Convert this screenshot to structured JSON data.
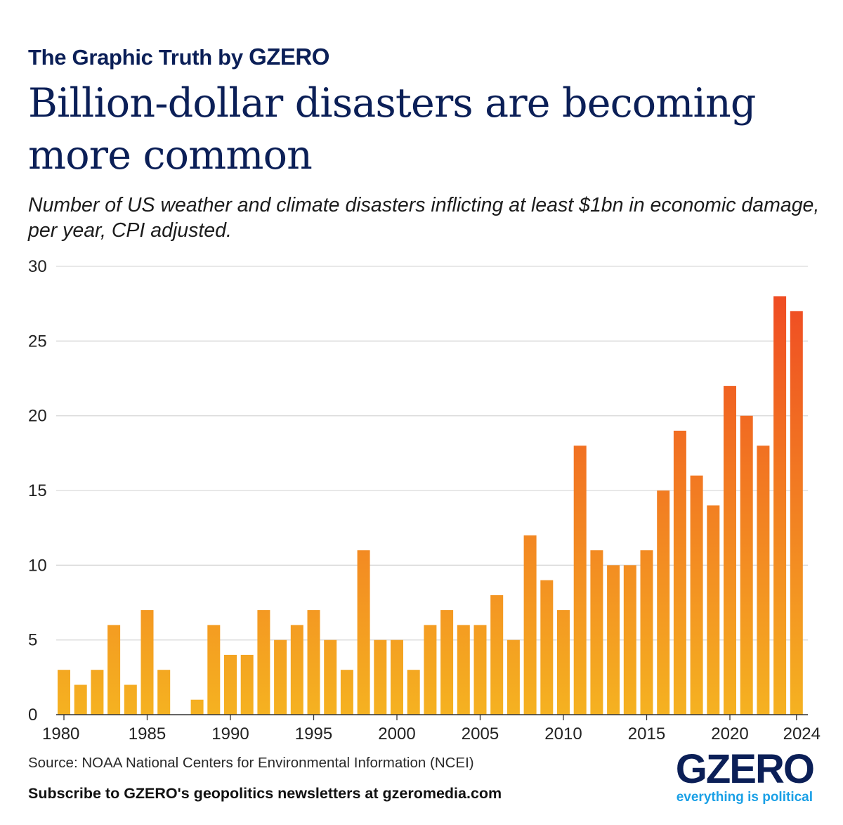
{
  "header": {
    "kicker": "The Graphic Truth by",
    "kicker_brand": "GZERO",
    "title": "Billion-dollar disasters are becoming more common",
    "subtitle": "Number of US weather and climate disasters inflicting at least $1bn in economic damage, per year, CPI adjusted."
  },
  "chart_data": {
    "type": "bar",
    "title": "Billion-dollar disasters are becoming more common",
    "xlabel": "",
    "ylabel": "",
    "ylim": [
      0,
      30
    ],
    "yticks": [
      0,
      5,
      10,
      15,
      20,
      25,
      30
    ],
    "xtick_labels": [
      "1980",
      "1985",
      "1990",
      "1995",
      "2000",
      "2005",
      "2010",
      "2015",
      "2020",
      "2024"
    ],
    "grid": true,
    "categories": [
      1980,
      1981,
      1982,
      1983,
      1984,
      1985,
      1986,
      1987,
      1988,
      1989,
      1990,
      1991,
      1992,
      1993,
      1994,
      1995,
      1996,
      1997,
      1998,
      1999,
      2000,
      2001,
      2002,
      2003,
      2004,
      2005,
      2006,
      2007,
      2008,
      2009,
      2010,
      2011,
      2012,
      2013,
      2014,
      2015,
      2016,
      2017,
      2018,
      2019,
      2020,
      2021,
      2022,
      2023,
      2024
    ],
    "values": [
      3,
      2,
      3,
      6,
      2,
      7,
      3,
      0,
      1,
      6,
      4,
      4,
      7,
      5,
      6,
      7,
      5,
      3,
      11,
      5,
      5,
      3,
      6,
      7,
      6,
      6,
      8,
      5,
      12,
      9,
      7,
      18,
      11,
      10,
      10,
      11,
      15,
      19,
      16,
      14,
      22,
      20,
      18,
      28,
      27
    ],
    "colors": {
      "low": "#f5b221",
      "high": "#ef4c23",
      "grid": "#d9d9d9",
      "axis": "#333333"
    }
  },
  "footer": {
    "source": "Source: NOAA National Centers for Environmental Information (NCEI)",
    "subscribe": "Subscribe to GZERO's geopolitics newsletters at gzeromedia.com",
    "logo_word": "GZERO",
    "logo_tagline": "everything is political"
  }
}
